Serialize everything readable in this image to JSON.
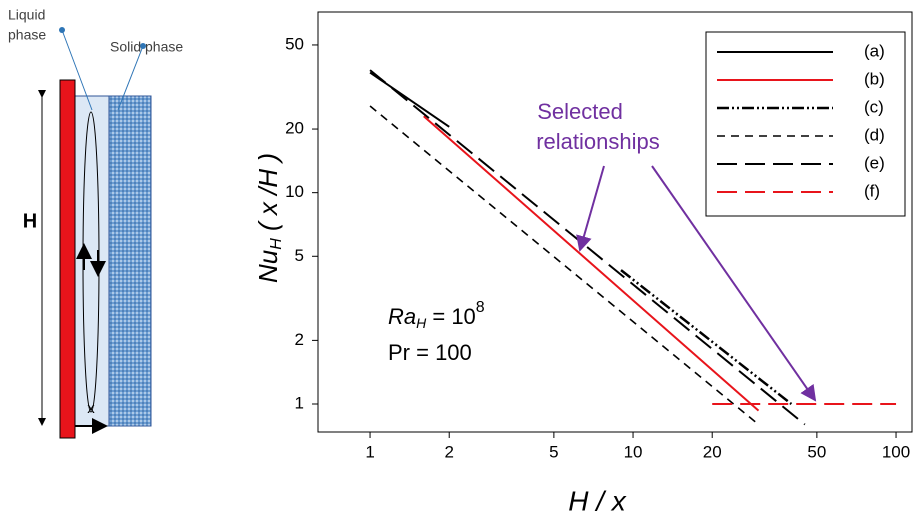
{
  "diagram": {
    "liquid_label": [
      "Liquid",
      "phase"
    ],
    "solid_label": "Solid phase",
    "height_label": "H",
    "x_label": "x"
  },
  "chart_data": {
    "type": "line",
    "ylabel": {
      "base": "Nu",
      "sub": "H",
      "rest": " ( x /H )"
    },
    "xlabel": "H / x",
    "xscale": "log",
    "yscale": "log",
    "xlim": [
      0.634,
      115
    ],
    "ylim": [
      0.737,
      71.6
    ],
    "xticks": [
      1,
      2,
      5,
      10,
      20,
      50,
      100
    ],
    "yticks": [
      1,
      2,
      5,
      10,
      20,
      50
    ],
    "legend": "upper right",
    "series": [
      {
        "name": "(a)",
        "color": "#000000",
        "style": "solid",
        "x": [
          1,
          2
        ],
        "values": [
          37,
          20.5
        ]
      },
      {
        "name": "(b)",
        "color": "#e8141b",
        "style": "solid",
        "x": [
          1.6,
          30
        ],
        "values": [
          23,
          0.93
        ]
      },
      {
        "name": "(c)",
        "color": "#000000",
        "style": "dashdotdot",
        "x": [
          9,
          40
        ],
        "values": [
          4.3,
          1
        ]
      },
      {
        "name": "(d)",
        "color": "#000000",
        "style": "dashed",
        "x": [
          1,
          30
        ],
        "values": [
          25.7,
          0.8
        ]
      },
      {
        "name": "(e)",
        "color": "#000000",
        "style": "longdash",
        "x": [
          1,
          45
        ],
        "values": [
          38,
          0.8
        ]
      },
      {
        "name": "(f)",
        "color": "#e8141b",
        "style": "longdash",
        "x": [
          20,
          100
        ],
        "values": [
          1,
          1
        ]
      }
    ],
    "annotations": {
      "selected": [
        "Selected",
        "relationships"
      ],
      "selected_color": "#7030a0",
      "ra": {
        "base": "Ra",
        "sub": "H",
        "rest": " = 10",
        "sup": "8"
      },
      "pr": "Pr = 100"
    }
  }
}
